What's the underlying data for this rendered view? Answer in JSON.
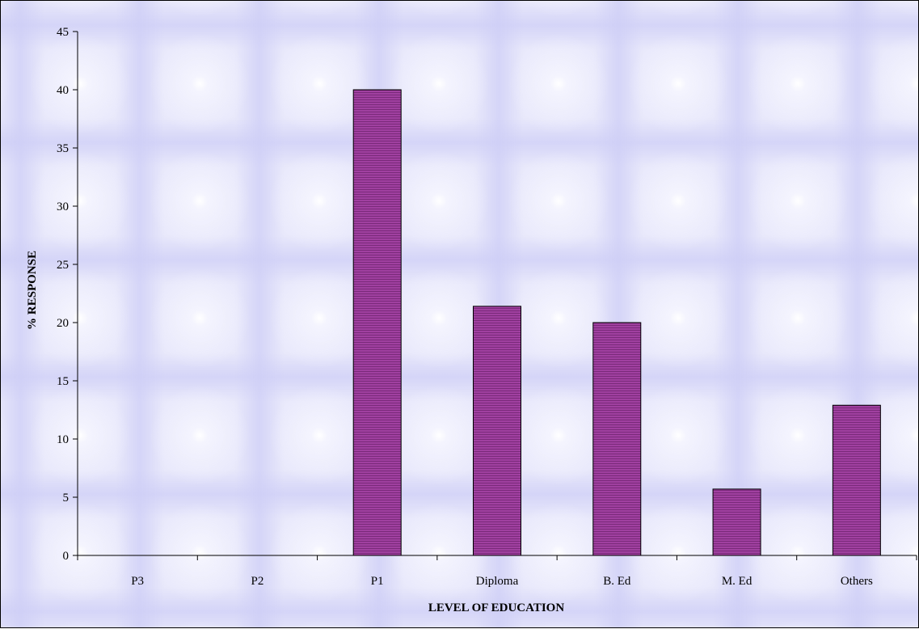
{
  "chart_data": {
    "type": "bar",
    "categories": [
      "P3",
      "P2",
      "P1",
      "Diploma",
      "B. Ed",
      "M. Ed",
      "Others"
    ],
    "values": [
      0,
      0,
      40,
      21.4,
      20,
      5.7,
      12.9
    ],
    "xlabel": "LEVEL OF EDUCATION",
    "ylabel": "% RESPONSE",
    "ylim": [
      0,
      45
    ],
    "yticks": [
      0,
      5,
      10,
      15,
      20,
      25,
      30,
      35,
      40,
      45
    ],
    "grid": false,
    "legend": "none",
    "bar_color": "#9b3a9b"
  }
}
